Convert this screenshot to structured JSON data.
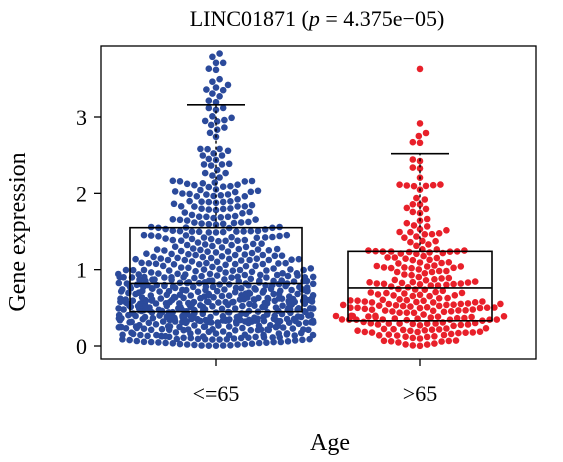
{
  "chart_data": {
    "type": "scatter",
    "subtype": "beeswarm-boxplot",
    "title": {
      "gene": "LINC01871",
      "stat_symbol": "p",
      "stat_value": "4.375e−05"
    },
    "xlabel": "Age",
    "ylabel": "Gene expression",
    "categories": [
      "<=65",
      ">65"
    ],
    "yticks": [
      "0",
      "1",
      "2",
      "3"
    ],
    "ylim": [
      0,
      3.85
    ],
    "grid": false,
    "legend": "none",
    "groups": [
      {
        "label": "<=65",
        "color": "#2b4a9b",
        "n_points": 680,
        "y_max": 3.83,
        "box": {
          "q1": 0.45,
          "median": 0.82,
          "q3": 1.55,
          "whisker_low": 0,
          "whisker_high": 3.16
        }
      },
      {
        "label": ">65",
        "color": "#e8202a",
        "n_points": 245,
        "y_max": 3.63,
        "box": {
          "q1": 0.33,
          "median": 0.76,
          "q3": 1.24,
          "whisker_low": 0,
          "whisker_high": 2.52
        }
      }
    ]
  }
}
